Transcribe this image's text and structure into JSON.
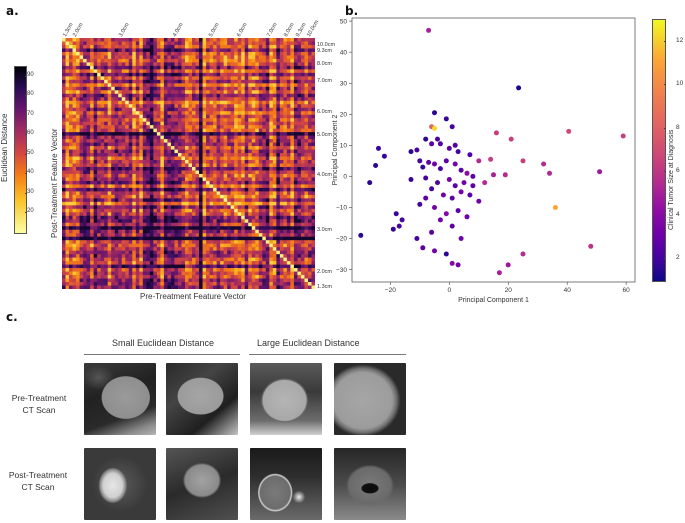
{
  "panels": {
    "a": {
      "letter": "a.",
      "colorbar_label": "Euclidean Distance",
      "colorbar_ticks": [
        "90",
        "80",
        "70",
        "60",
        "50",
        "40",
        "30",
        "20"
      ],
      "x_label": "Pre-Treatment Feature Vector",
      "y_label": "Post-Treatment Feature Vector",
      "top_labels": [
        "1.3cm",
        "2.0cm",
        "3.0cm",
        "4.0cm",
        "5.0cm",
        "6.0cm",
        "7.0cm",
        "8.0cm",
        "9.3cm",
        "10.0cm"
      ],
      "right_labels": [
        "10.0cm",
        "9.3cm",
        "8.0cm",
        "7.0cm",
        "6.0cm",
        "5.0cm",
        "4.0cm",
        "3.0cm",
        "2.0cm",
        "1.3cm"
      ]
    },
    "b": {
      "letter": "b.",
      "colorbar_label": "Clinical Tumor Size at Diagnosis",
      "colorbar_ticks": [
        "12",
        "10",
        "8",
        "6",
        "4",
        "2"
      ]
    },
    "c": {
      "letter": "c.",
      "group_small": "Small Euclidean Distance",
      "group_large": "Large Euclidean Distance",
      "row_pre": [
        "Pre-Treatment",
        "CT Scan"
      ],
      "row_post": [
        "Post-Treatment",
        "CT Scan"
      ],
      "images": [
        {
          "row": "pre",
          "col": 1,
          "icon": "ct-scan-icon"
        },
        {
          "row": "pre",
          "col": 2,
          "icon": "ct-scan-icon"
        },
        {
          "row": "pre",
          "col": 3,
          "icon": "ct-scan-icon"
        },
        {
          "row": "pre",
          "col": 4,
          "icon": "ct-scan-icon"
        },
        {
          "row": "post",
          "col": 1,
          "icon": "ct-scan-icon"
        },
        {
          "row": "post",
          "col": 2,
          "icon": "ct-scan-icon"
        },
        {
          "row": "post",
          "col": 3,
          "icon": "ct-scan-icon"
        },
        {
          "row": "post",
          "col": 4,
          "icon": "ct-scan-icon"
        }
      ]
    }
  },
  "chart_data": [
    {
      "type": "heatmap",
      "title": "",
      "xlabel": "Pre-Treatment Feature Vector",
      "ylabel": "Post-Treatment Feature Vector",
      "colorbar": {
        "label": "Euclidean Distance",
        "range": [
          10,
          95
        ],
        "colormap": "inferno"
      },
      "size": 72
    },
    {
      "type": "scatter",
      "title": "",
      "xlabel": "Principal Component 1",
      "ylabel": "Principal Component 2",
      "xlim": [
        -33,
        63
      ],
      "ylim": [
        -34,
        51
      ],
      "xticks": [
        -20,
        0,
        20,
        40,
        60
      ],
      "yticks": [
        -30,
        -20,
        -10,
        0,
        10,
        20,
        30,
        40,
        50
      ],
      "colorbar": {
        "label": "Clinical Tumor Size at Diagnosis",
        "range": [
          1,
          13
        ],
        "colormap": "plasma"
      },
      "points": [
        [
          -7,
          47,
          7.5
        ],
        [
          23.5,
          28.5,
          1.5
        ],
        [
          -5,
          20.5,
          2
        ],
        [
          -1,
          18.5,
          2.5
        ],
        [
          -6,
          16,
          10.5
        ],
        [
          -5,
          15.5,
          12.8
        ],
        [
          1,
          16,
          3
        ],
        [
          16,
          14,
          9
        ],
        [
          21,
          12,
          9
        ],
        [
          40.5,
          14.5,
          9.5
        ],
        [
          59,
          13,
          9
        ],
        [
          -8,
          12,
          2
        ],
        [
          -4,
          12,
          3
        ],
        [
          2,
          10,
          3.5
        ],
        [
          -24,
          9,
          2.5
        ],
        [
          -22,
          6.5,
          2.5
        ],
        [
          -13,
          8,
          2
        ],
        [
          -11,
          8.5,
          3
        ],
        [
          -6,
          10.5,
          4
        ],
        [
          -3,
          10.5,
          3.5
        ],
        [
          0,
          9,
          4
        ],
        [
          3,
          8,
          3
        ],
        [
          7,
          7,
          3.5
        ],
        [
          10,
          5,
          8
        ],
        [
          14,
          5.5,
          9
        ],
        [
          25,
          5,
          9
        ],
        [
          32,
          4,
          8
        ],
        [
          34,
          1,
          8
        ],
        [
          51,
          1.5,
          7
        ],
        [
          -10,
          5,
          3
        ],
        [
          -9,
          3,
          2.5
        ],
        [
          -7,
          4.5,
          4
        ],
        [
          -5,
          4,
          5
        ],
        [
          -3,
          2.5,
          3
        ],
        [
          -1,
          5,
          4
        ],
        [
          2,
          4,
          5
        ],
        [
          4,
          2,
          4
        ],
        [
          6,
          1,
          6
        ],
        [
          8,
          0,
          4
        ],
        [
          12,
          -2,
          8
        ],
        [
          15,
          0.5,
          7.5
        ],
        [
          19,
          0.5,
          8
        ],
        [
          -25,
          3.5,
          2
        ],
        [
          -27,
          -2,
          2
        ],
        [
          -13,
          -1,
          2.5
        ],
        [
          -8,
          -0.5,
          3
        ],
        [
          -4,
          -2,
          3
        ],
        [
          0,
          -1,
          5
        ],
        [
          2,
          -3,
          4
        ],
        [
          5,
          -2,
          5
        ],
        [
          8,
          -3,
          4
        ],
        [
          -6,
          -4,
          3
        ],
        [
          -2,
          -6,
          5
        ],
        [
          1,
          -7,
          4
        ],
        [
          4,
          -5,
          5
        ],
        [
          7,
          -6,
          4
        ],
        [
          -18,
          -12,
          2.5
        ],
        [
          -16,
          -14,
          3
        ],
        [
          -10,
          -9,
          3
        ],
        [
          -8,
          -7,
          4
        ],
        [
          -5,
          -10,
          5
        ],
        [
          -1,
          -12,
          6
        ],
        [
          3,
          -11,
          4
        ],
        [
          6,
          -13,
          5
        ],
        [
          10,
          -8,
          5
        ],
        [
          36,
          -10,
          12.5
        ],
        [
          -19,
          -17,
          2.5
        ],
        [
          -17,
          -16,
          3
        ],
        [
          -11,
          -20,
          3
        ],
        [
          -6,
          -18,
          4
        ],
        [
          -3,
          -14,
          5
        ],
        [
          1,
          -16,
          4
        ],
        [
          4,
          -20,
          5
        ],
        [
          -30,
          -19,
          2
        ],
        [
          -9,
          -23,
          4
        ],
        [
          -5,
          -24,
          5
        ],
        [
          -1,
          -25,
          2
        ],
        [
          1,
          -28,
          6
        ],
        [
          3,
          -28.5,
          5
        ],
        [
          17,
          -31,
          7.5
        ],
        [
          20,
          -28.5,
          7
        ],
        [
          25,
          -25,
          8
        ],
        [
          48,
          -22.5,
          8.5
        ]
      ]
    }
  ]
}
